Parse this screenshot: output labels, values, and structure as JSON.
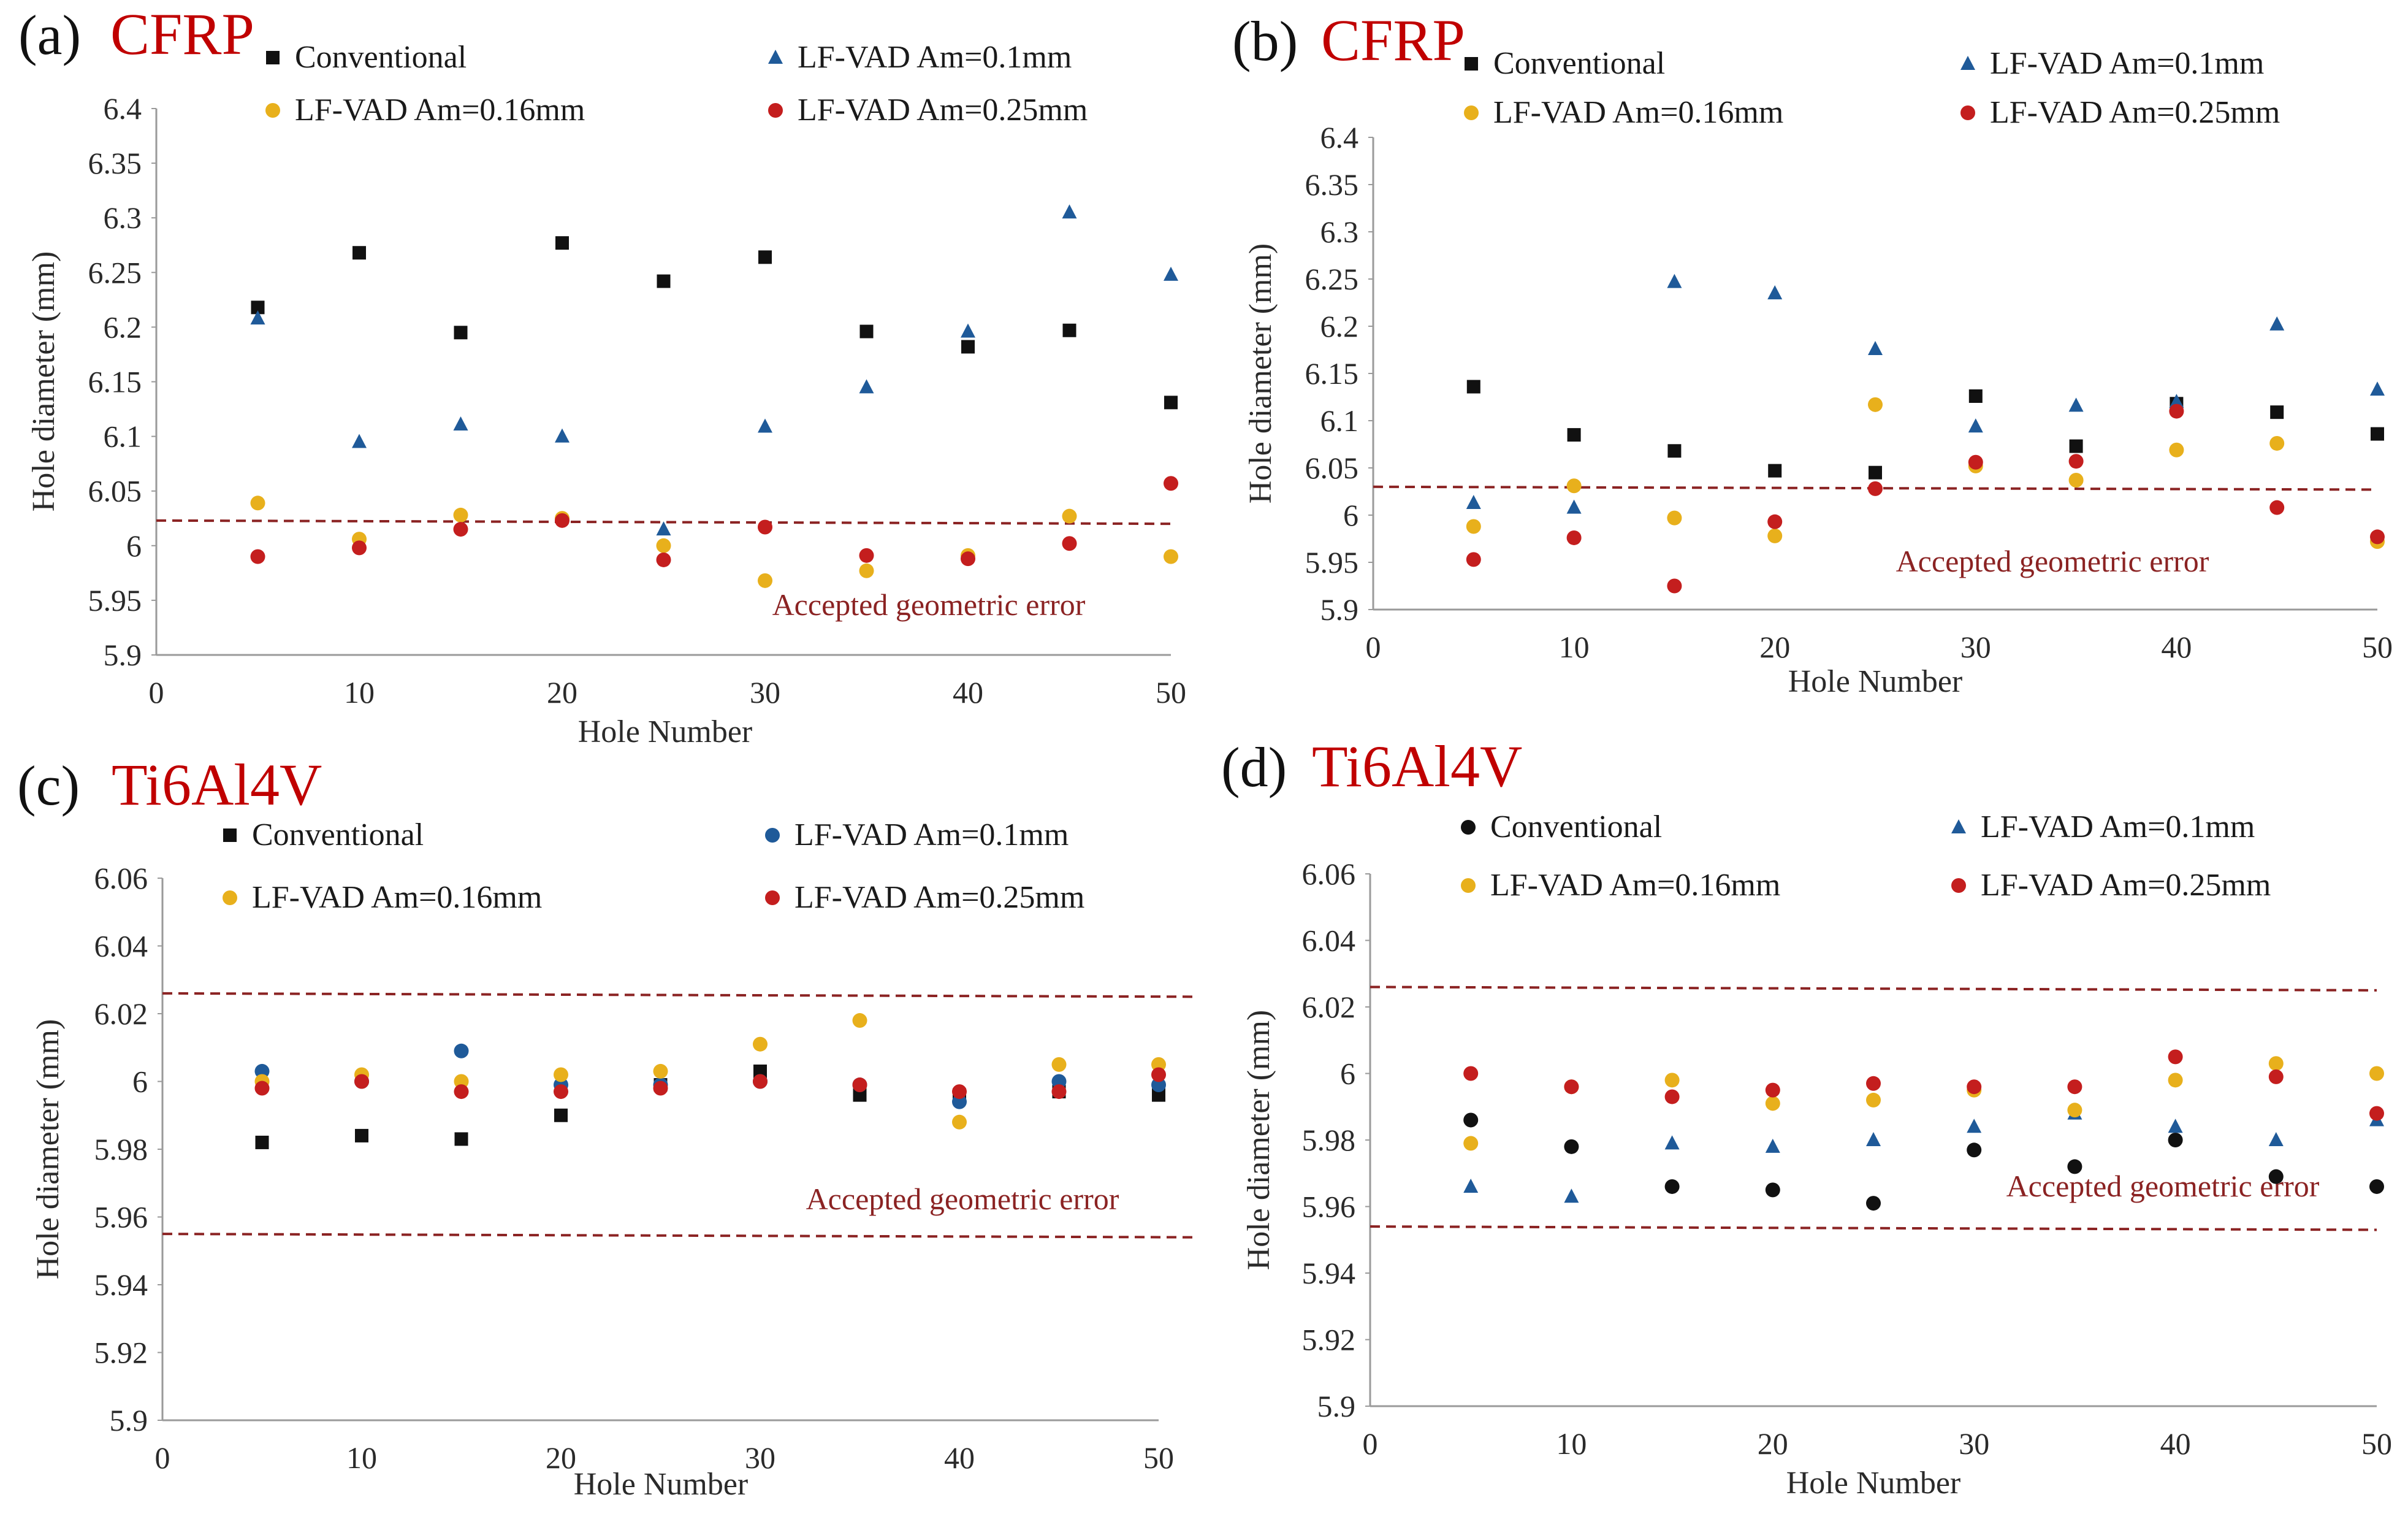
{
  "colors": {
    "conventional": "#111111",
    "am01": "#1f5a99",
    "am016": "#e8b01c",
    "am025": "#c41e1e",
    "reference_line": "#8b2323",
    "material_title": "#c00000"
  },
  "chart_data": [
    {
      "type": "scatter",
      "panel": "(a)",
      "title": "CFRP",
      "xlabel": "Hole Number",
      "ylabel": "Hole diameter (mm)",
      "xlim": [
        0,
        50
      ],
      "ylim": [
        5.9,
        6.4
      ],
      "x_ticks": [
        0,
        10,
        20,
        30,
        40,
        50
      ],
      "y_ticks": [
        "5.9",
        "5.95",
        "6",
        "6.05",
        "6.1",
        "6.15",
        "6.2",
        "6.25",
        "6.3",
        "6.35",
        "6.4"
      ],
      "x": [
        5,
        10,
        15,
        20,
        25,
        30,
        35,
        40,
        45,
        50
      ],
      "series": [
        {
          "name": "Conventional",
          "marker": "square",
          "color": "#111111",
          "values": [
            6.218,
            6.268,
            6.195,
            6.277,
            6.242,
            6.264,
            6.196,
            6.182,
            6.197,
            6.131
          ]
        },
        {
          "name": "LF-VAD Am=0.1mm",
          "marker": "triangle",
          "color": "#1f5a99",
          "values": [
            6.208,
            6.095,
            6.111,
            6.1,
            6.015,
            6.109,
            6.145,
            6.196,
            6.305,
            6.248
          ]
        },
        {
          "name": "LF-VAD Am=0.16mm",
          "marker": "circle",
          "color": "#e8b01c",
          "values": [
            6.039,
            6.006,
            6.028,
            6.025,
            6.0,
            5.968,
            5.977,
            5.991,
            6.027,
            5.99
          ]
        },
        {
          "name": "LF-VAD Am=0.25mm",
          "marker": "circle",
          "color": "#c41e1e",
          "values": [
            5.99,
            5.998,
            6.015,
            6.023,
            5.987,
            6.017,
            5.991,
            5.988,
            6.002,
            6.057
          ]
        }
      ],
      "reference_lines": [
        {
          "x": [
            0,
            50
          ],
          "y": [
            6.023,
            6.02
          ],
          "label": "Accepted geometric error"
        }
      ]
    },
    {
      "type": "scatter",
      "panel": "(b)",
      "title": "CFRP",
      "xlabel": "Hole Number",
      "ylabel": "Hole diameter (mm)",
      "xlim": [
        0,
        50
      ],
      "ylim": [
        5.9,
        6.4
      ],
      "x_ticks": [
        0,
        10,
        20,
        30,
        40,
        50
      ],
      "y_ticks": [
        "5.9",
        "5.95",
        "6",
        "6.05",
        "6.1",
        "6.15",
        "6.2",
        "6.25",
        "6.3",
        "6.35",
        "6.4"
      ],
      "x": [
        5,
        10,
        15,
        20,
        25,
        30,
        35,
        40,
        45,
        50
      ],
      "series": [
        {
          "name": "Conventional",
          "marker": "square",
          "color": "#111111",
          "values": [
            6.136,
            6.085,
            6.068,
            6.047,
            6.045,
            6.126,
            6.073,
            6.118,
            6.109,
            6.086
          ]
        },
        {
          "name": "LF-VAD Am=0.1mm",
          "marker": "triangle",
          "color": "#1f5a99",
          "values": [
            6.013,
            6.008,
            6.247,
            6.235,
            6.176,
            6.094,
            6.116,
            6.12,
            6.202,
            6.133
          ]
        },
        {
          "name": "LF-VAD Am=0.16mm",
          "marker": "circle",
          "color": "#e8b01c",
          "values": [
            5.988,
            6.031,
            5.997,
            5.978,
            6.117,
            6.052,
            6.037,
            6.069,
            6.076,
            5.972
          ]
        },
        {
          "name": "LF-VAD Am=0.25mm",
          "marker": "circle",
          "color": "#c41e1e",
          "values": [
            5.953,
            5.976,
            5.925,
            5.993,
            6.028,
            6.056,
            6.057,
            6.11,
            6.008,
            5.977
          ]
        }
      ],
      "reference_lines": [
        {
          "x": [
            0,
            50
          ],
          "y": [
            6.03,
            6.027
          ],
          "label": "Accepted geometric error"
        }
      ]
    },
    {
      "type": "scatter",
      "panel": "(c)",
      "title": "Ti6Al4V",
      "xlabel": "Hole Number",
      "ylabel": "Hole diameter (mm)",
      "xlim": [
        0,
        50
      ],
      "ylim": [
        5.9,
        6.06
      ],
      "x_ticks": [
        0,
        10,
        20,
        30,
        40,
        50
      ],
      "y_ticks": [
        "5.9",
        "5.92",
        "5.94",
        "5.96",
        "5.98",
        "6",
        "6.02",
        "6.04",
        "6.06"
      ],
      "x": [
        5,
        10,
        15,
        20,
        25,
        30,
        35,
        40,
        45,
        50
      ],
      "series": [
        {
          "name": "Conventional",
          "marker": "square",
          "color": "#111111",
          "values": [
            5.982,
            5.984,
            5.983,
            5.99,
            5.999,
            6.003,
            5.996,
            5.996,
            5.997,
            5.996
          ]
        },
        {
          "name": "LF-VAD Am=0.1mm",
          "marker": "circle",
          "color": "#1f5a99",
          "values": [
            6.003,
            6.0,
            6.009,
            5.999,
            5.999,
            6.0,
            5.999,
            5.994,
            6.0,
            5.999
          ]
        },
        {
          "name": "LF-VAD Am=0.16mm",
          "marker": "circle",
          "color": "#e8b01c",
          "values": [
            6.0,
            6.002,
            6.0,
            6.002,
            6.003,
            6.011,
            6.018,
            5.988,
            6.005,
            6.005
          ]
        },
        {
          "name": "LF-VAD Am=0.25mm",
          "marker": "circle",
          "color": "#c41e1e",
          "values": [
            5.998,
            6.0,
            5.997,
            5.997,
            5.998,
            6.0,
            5.999,
            5.997,
            5.997,
            6.002
          ]
        }
      ],
      "reference_lines": [
        {
          "x": [
            0,
            52
          ],
          "y": [
            6.026,
            6.025
          ],
          "label": ""
        },
        {
          "x": [
            0,
            52
          ],
          "y": [
            5.955,
            5.954
          ],
          "label": "Accepted geometric error"
        }
      ]
    },
    {
      "type": "scatter",
      "panel": "(d)",
      "title": "Ti6Al4V",
      "xlabel": "Hole Number",
      "ylabel": "Hole diameter (mm)",
      "xlim": [
        0,
        50
      ],
      "ylim": [
        5.9,
        6.06
      ],
      "x_ticks": [
        0,
        10,
        20,
        30,
        40,
        50
      ],
      "y_ticks": [
        "5.9",
        "5.92",
        "5.94",
        "5.96",
        "5.98",
        "6",
        "6.02",
        "6.04",
        "6.06"
      ],
      "x": [
        5,
        10,
        15,
        20,
        25,
        30,
        35,
        40,
        45,
        50
      ],
      "series": [
        {
          "name": "Conventional",
          "marker": "circle",
          "color": "#111111",
          "values": [
            5.986,
            5.978,
            5.966,
            5.965,
            5.961,
            5.977,
            5.972,
            5.98,
            5.969,
            5.966
          ]
        },
        {
          "name": "LF-VAD Am=0.1mm",
          "marker": "triangle",
          "color": "#1f5a99",
          "values": [
            5.966,
            5.963,
            5.979,
            5.978,
            5.98,
            5.984,
            5.988,
            5.984,
            5.98,
            5.986
          ]
        },
        {
          "name": "LF-VAD Am=0.16mm",
          "marker": "circle",
          "color": "#e8b01c",
          "values": [
            5.979,
            5.996,
            5.998,
            5.991,
            5.992,
            5.995,
            5.989,
            5.998,
            6.003,
            6.0
          ]
        },
        {
          "name": "LF-VAD Am=0.25mm",
          "marker": "circle",
          "color": "#c41e1e",
          "values": [
            6.0,
            5.996,
            5.993,
            5.995,
            5.997,
            5.996,
            5.996,
            6.005,
            5.999,
            5.988
          ]
        }
      ],
      "reference_lines": [
        {
          "x": [
            0,
            50
          ],
          "y": [
            6.026,
            6.025
          ],
          "label": ""
        },
        {
          "x": [
            0,
            50
          ],
          "y": [
            5.954,
            5.953
          ],
          "label": "Accepted geometric error"
        }
      ]
    }
  ]
}
